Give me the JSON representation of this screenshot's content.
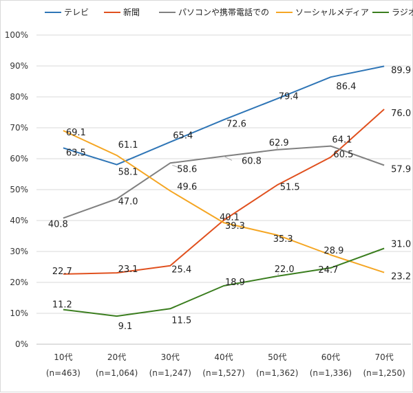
{
  "chart_data": {
    "type": "line",
    "categories": [
      "10代",
      "20代",
      "30代",
      "40代",
      "50代",
      "60代",
      "70代"
    ],
    "category_sub": [
      "(n=463)",
      "(n=1,064)",
      "(n=1,247)",
      "(n=1,527)",
      "(n=1,362)",
      "(n=1,336)",
      "(n=1,250)"
    ],
    "ylim": [
      0,
      100
    ],
    "yticks": [
      0,
      10,
      20,
      30,
      40,
      50,
      60,
      70,
      80,
      90,
      100
    ],
    "ytick_labels": [
      "0%",
      "10%",
      "20%",
      "30%",
      "40%",
      "50%",
      "60%",
      "70%",
      "80%",
      "90%",
      "100%"
    ],
    "grid": true,
    "legend_position": "top",
    "series": [
      {
        "name": "テレビ",
        "color": "#2e75b6",
        "values": [
          63.5,
          58.1,
          65.4,
          72.6,
          79.4,
          86.4,
          89.9
        ]
      },
      {
        "name": "新聞",
        "color": "#e0501e",
        "values": [
          22.7,
          23.1,
          25.4,
          40.1,
          51.5,
          60.5,
          76.0
        ]
      },
      {
        "name": "パソコンや携帯電話での",
        "color": "#808080",
        "values": [
          40.8,
          47.0,
          58.6,
          60.8,
          62.9,
          64.1,
          57.9
        ]
      },
      {
        "name": "ソーシャルメディア",
        "color": "#f5a623",
        "values": [
          69.1,
          61.1,
          49.6,
          39.3,
          35.3,
          28.9,
          23.2
        ]
      },
      {
        "name": "ラジオ",
        "color": "#3a7d1e",
        "values": [
          11.2,
          9.1,
          11.5,
          18.9,
          22.0,
          24.7,
          31.0
        ]
      }
    ]
  }
}
